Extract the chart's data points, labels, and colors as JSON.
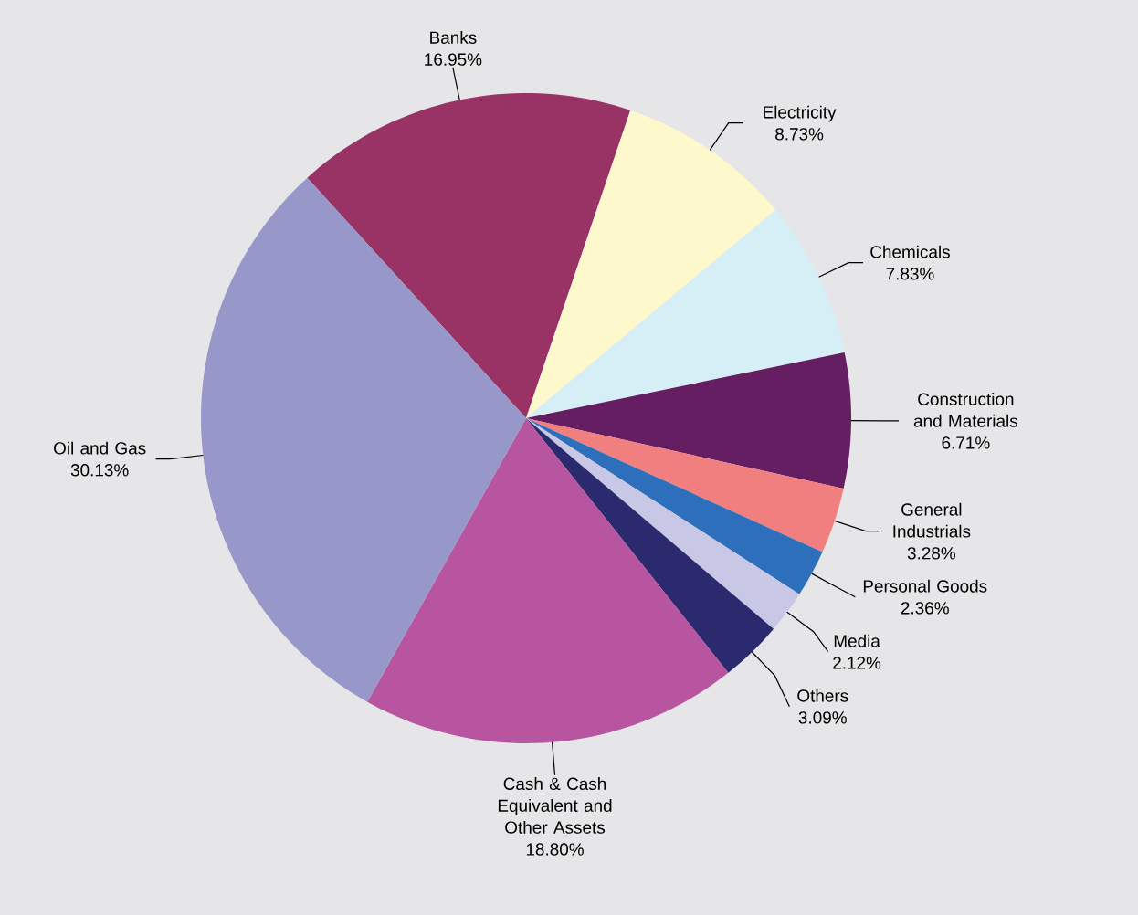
{
  "chart_data": {
    "type": "pie",
    "categories": [
      "Banks",
      "Electricity",
      "Chemicals",
      "Construction and Materials",
      "General Industrials",
      "Personal Goods",
      "Media",
      "Others",
      "Cash & Cash Equivalent and Other Assets",
      "Oil and Gas"
    ],
    "values": [
      16.95,
      8.73,
      7.83,
      6.71,
      3.28,
      2.36,
      2.12,
      3.09,
      18.8,
      30.13
    ],
    "value_labels": [
      "16.95%",
      "8.73%",
      "7.83%",
      "6.71%",
      "3.28%",
      "2.36%",
      "2.12%",
      "3.09%",
      "18.80%",
      "30.13%"
    ],
    "colors": [
      "#993366",
      "#fdf9cc",
      "#d6eef5",
      "#661e63",
      "#f27f7f",
      "#2e6fbb",
      "#c8c8e6",
      "#2b2a6f",
      "#b855a0",
      "#9797c9"
    ]
  }
}
